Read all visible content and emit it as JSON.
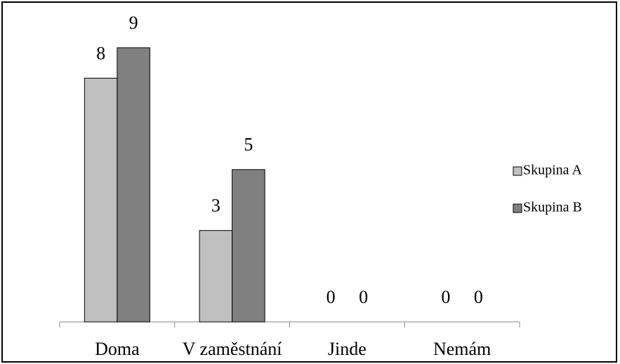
{
  "chart_data": {
    "type": "bar",
    "categories": [
      "Doma",
      "V zaměstnání",
      "Jinde",
      "Nemám"
    ],
    "series": [
      {
        "name": "Skupina A",
        "color": "#c0c0c0",
        "values": [
          8,
          3,
          0,
          0
        ]
      },
      {
        "name": "Skupina B",
        "color": "#808080",
        "values": [
          9,
          5,
          0,
          0
        ]
      }
    ],
    "legend": "right"
  }
}
